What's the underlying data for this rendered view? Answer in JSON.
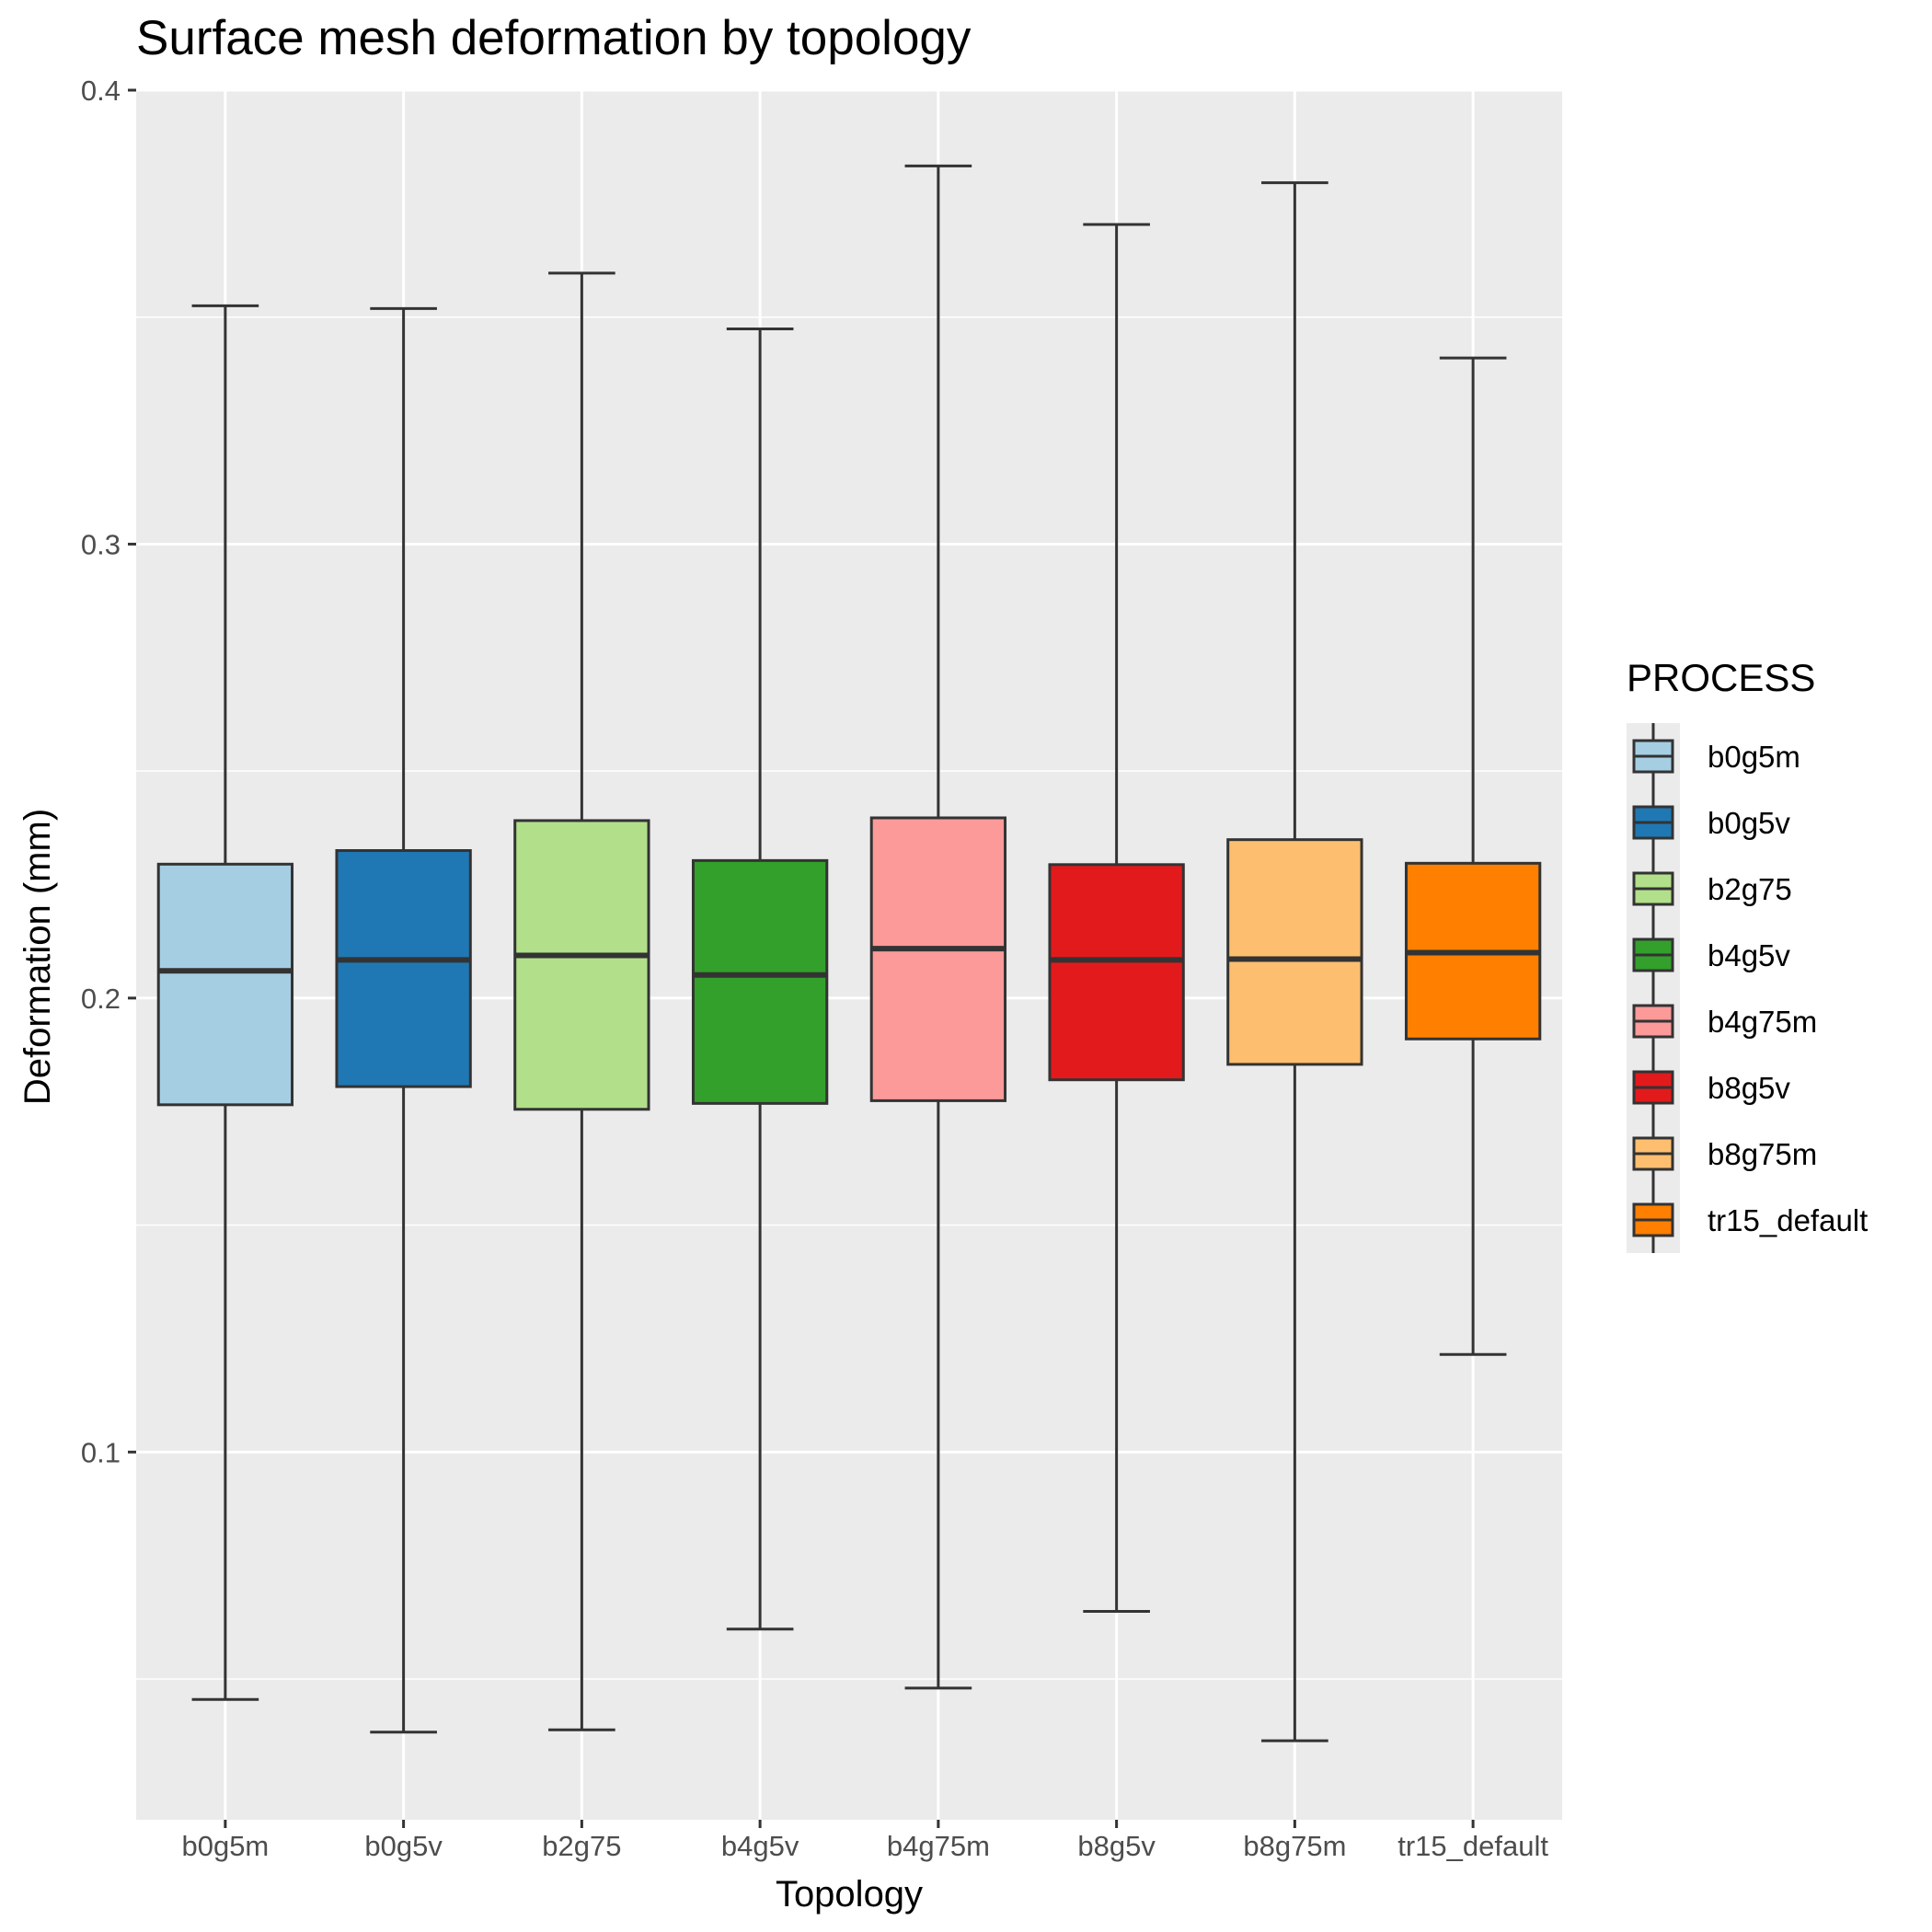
{
  "chart_data": {
    "type": "boxplot",
    "title": "Surface mesh deformation by topology",
    "xlabel": "Topology",
    "ylabel": "Deformation (mm)",
    "ylim": [
      0.019,
      0.4
    ],
    "y_ticks": [
      0.1,
      0.2,
      0.3,
      0.4
    ],
    "y_tick_labels": [
      "0.1",
      "0.2",
      "0.3",
      "0.4"
    ],
    "grid": true,
    "legend": {
      "title": "PROCESS",
      "position": "right"
    },
    "categories": [
      "b0g5m",
      "b0g5v",
      "b2g75",
      "b4g5v",
      "b4g75m",
      "b8g5v",
      "b8g75m",
      "tr15_default"
    ],
    "series": [
      {
        "name": "b0g5m",
        "color": "#A6CEE3",
        "min": 0.0455,
        "q1": 0.1765,
        "median": 0.206,
        "q3": 0.2295,
        "max": 0.3525
      },
      {
        "name": "b0g5v",
        "color": "#1F78B4",
        "min": 0.0383,
        "q1": 0.1805,
        "median": 0.2084,
        "q3": 0.2325,
        "max": 0.3519
      },
      {
        "name": "b2g75",
        "color": "#B2DF8A",
        "min": 0.0388,
        "q1": 0.1755,
        "median": 0.2094,
        "q3": 0.2391,
        "max": 0.3597
      },
      {
        "name": "b4g5v",
        "color": "#33A02C",
        "min": 0.061,
        "q1": 0.1768,
        "median": 0.2051,
        "q3": 0.2303,
        "max": 0.3474
      },
      {
        "name": "b4g75m",
        "color": "#FB9A99",
        "min": 0.048,
        "q1": 0.1774,
        "median": 0.2109,
        "q3": 0.2397,
        "max": 0.3833
      },
      {
        "name": "b8g5v",
        "color": "#E31A1C",
        "min": 0.0649,
        "q1": 0.182,
        "median": 0.2084,
        "q3": 0.2294,
        "max": 0.3704
      },
      {
        "name": "b8g75m",
        "color": "#FDBF6F",
        "min": 0.0364,
        "q1": 0.1854,
        "median": 0.2086,
        "q3": 0.2349,
        "max": 0.3796
      },
      {
        "name": "tr15_default",
        "color": "#FF7F00",
        "min": 0.1215,
        "q1": 0.191,
        "median": 0.21,
        "q3": 0.2297,
        "max": 0.341
      }
    ],
    "colors": {
      "panel_background": "#EBEBEB",
      "grid": "#FFFFFF",
      "box_stroke": "#333333",
      "axis_text": "#4D4D4D"
    }
  }
}
